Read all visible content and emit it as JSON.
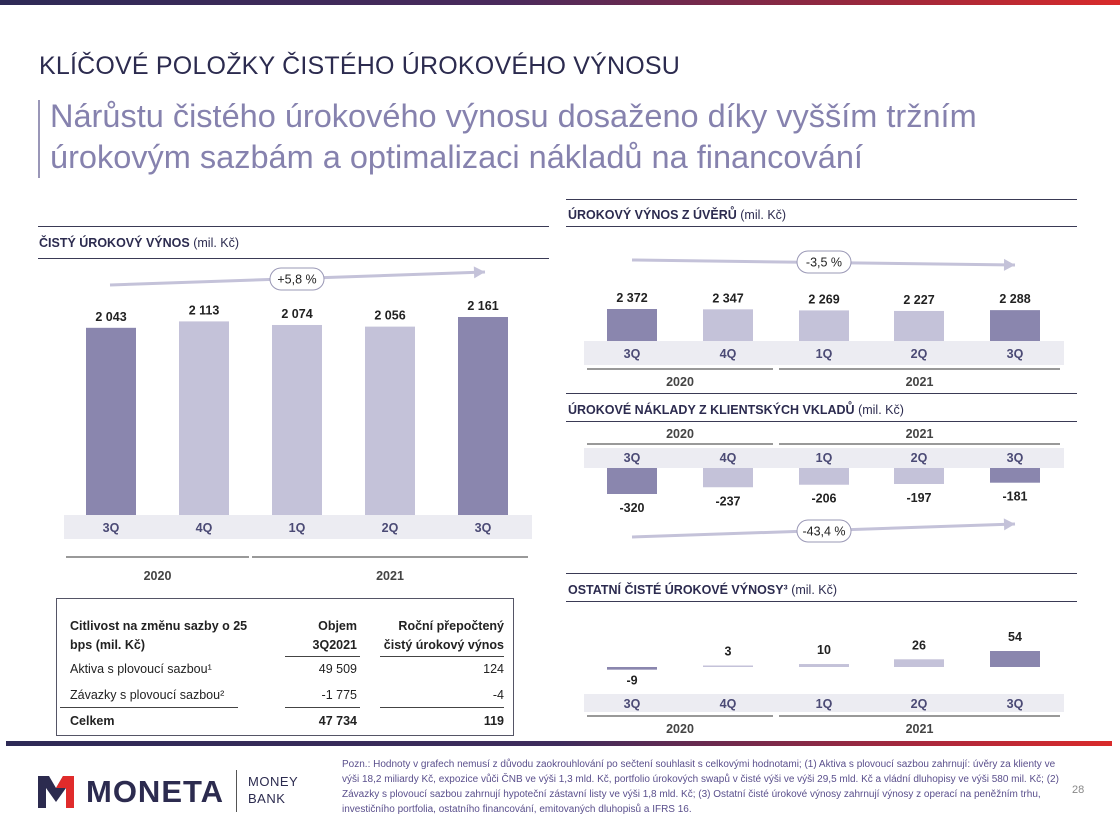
{
  "header": {
    "section_title": "KLÍČOVÉ POLOŽKY ČISTÉHO ÚROKOVÉHO VÝNOSU",
    "headline": "Nárůstu čistého úrokového výnosu dosaženo díky vyšším tržním úrokovým sazbám a optimalizaci nákladů na financování"
  },
  "colors": {
    "highlight_bar": "#8a86ae",
    "normal_bar": "#c4c2d9",
    "arrow": "#c4c2d9",
    "text_dark": "#2c2b4f"
  },
  "chart_data": [
    {
      "type": "bar",
      "title": "ČISTÝ ÚROKOVÝ VÝNOS",
      "unit": "(mil. Kč)",
      "categories": [
        "3Q",
        "4Q",
        "1Q",
        "2Q",
        "3Q"
      ],
      "years": [
        {
          "label": "2020",
          "span": [
            0,
            1
          ]
        },
        {
          "label": "2021",
          "span": [
            2,
            4
          ]
        }
      ],
      "values": [
        2043,
        2113,
        2074,
        2056,
        2161
      ],
      "value_labels": [
        "2 043",
        "2 113",
        "2 074",
        "2 056",
        "2 161"
      ],
      "highlight": [
        true,
        false,
        false,
        false,
        true
      ],
      "change_label": "+5,8 %",
      "ylim": [
        0,
        2161
      ]
    },
    {
      "type": "bar",
      "title": "ÚROKOVÝ VÝNOS Z ÚVĚRŮ",
      "unit": "(mil. Kč)",
      "categories": [
        "3Q",
        "4Q",
        "1Q",
        "2Q",
        "3Q"
      ],
      "years": [
        {
          "label": "2020",
          "span": [
            0,
            1
          ]
        },
        {
          "label": "2021",
          "span": [
            2,
            4
          ]
        }
      ],
      "values": [
        2372,
        2347,
        2269,
        2227,
        2288
      ],
      "value_labels": [
        "2 372",
        "2 347",
        "2 269",
        "2 227",
        "2 288"
      ],
      "highlight": [
        true,
        false,
        false,
        false,
        true
      ],
      "change_label": "-3,5 %"
    },
    {
      "type": "bar",
      "title": "ÚROKOVÉ NÁKLADY Z KLIENTSKÝCH VKLADŮ",
      "unit": "(mil. Kč)",
      "categories": [
        "3Q",
        "4Q",
        "1Q",
        "2Q",
        "3Q"
      ],
      "years": [
        {
          "label": "2020",
          "span": [
            0,
            1
          ]
        },
        {
          "label": "2021",
          "span": [
            2,
            4
          ]
        }
      ],
      "values": [
        -320,
        -237,
        -206,
        -197,
        -181
      ],
      "value_labels": [
        "-320",
        "-237",
        "-206",
        "-197",
        "-181"
      ],
      "highlight": [
        true,
        false,
        false,
        false,
        true
      ],
      "change_label": "-43,4 %"
    },
    {
      "type": "bar",
      "title": "OSTATNÍ ČISTÉ ÚROKOVÉ VÝNOSY³",
      "unit": "(mil. Kč)",
      "categories": [
        "3Q",
        "4Q",
        "1Q",
        "2Q",
        "3Q"
      ],
      "years": [
        {
          "label": "2020",
          "span": [
            0,
            1
          ]
        },
        {
          "label": "2021",
          "span": [
            2,
            4
          ]
        }
      ],
      "values": [
        -9,
        3,
        10,
        26,
        54
      ],
      "value_labels": [
        "-9",
        "3",
        "10",
        "26",
        "54"
      ],
      "highlight": [
        true,
        false,
        false,
        false,
        true
      ]
    }
  ],
  "sensitivity_table": {
    "headers": [
      "Citlivost na změnu sazby o 25 bps (mil. Kč)",
      "Objem 3Q2021",
      "Roční přepočtený čistý úrokový výnos"
    ],
    "rows": [
      {
        "label": "Aktiva s plovoucí sazbou¹",
        "volume": "49 509",
        "income": "124"
      },
      {
        "label": "Závazky s plovoucí sazbou²",
        "volume": "-1 775",
        "income": "-4"
      },
      {
        "label": "Celkem",
        "volume": "47 734",
        "income": "119"
      }
    ]
  },
  "footer": {
    "logo_name": "MONETA",
    "logo_sub1": "MONEY",
    "logo_sub2": "BANK",
    "note": "Pozn.: Hodnoty v grafech nemusí z důvodu zaokrouhlování po sečtení souhlasit s celkovými hodnotami; (1) Aktiva s plovoucí sazbou zahrnují: úvěry za klienty ve výši 18,2 miliardy Kč, expozice vůči ČNB ve výši 1,3 mld. Kč, portfolio úrokových swapů v čisté výši ve výši 29,5 mld. Kč a vládní dluhopisy ve výši 580 mil. Kč; (2) Závazky s plovoucí sazbou zahrnují hypoteční zástavní listy ve výši 1,8 mld. Kč; (3) Ostatní čisté úrokové výnosy zahrnují výnosy z operací na peněžním trhu, investičního portfolia, ostatního financování, emitovaných dluhopisů a IFRS 16.",
    "page_number": "28"
  }
}
